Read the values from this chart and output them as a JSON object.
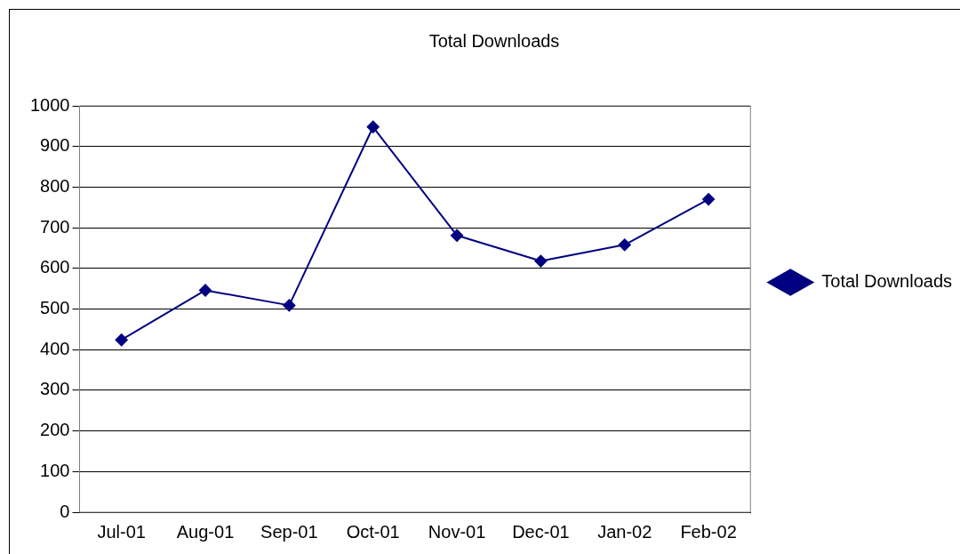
{
  "chart_data": {
    "type": "line",
    "title": "Total Downloads",
    "categories": [
      "Jul-01",
      "Aug-01",
      "Sep-01",
      "Oct-01",
      "Nov-01",
      "Dec-01",
      "Jan-02",
      "Feb-02"
    ],
    "series": [
      {
        "name": "Total Downloads",
        "color": "#000080",
        "values": [
          424,
          546,
          509,
          948,
          681,
          618,
          658,
          770
        ]
      }
    ],
    "ylim": [
      0,
      1000
    ],
    "yticks": [
      0,
      100,
      200,
      300,
      400,
      500,
      600,
      700,
      800,
      900,
      1000
    ],
    "grid": "y",
    "legend": "right",
    "marker": "diamond",
    "line_style": "solid"
  }
}
